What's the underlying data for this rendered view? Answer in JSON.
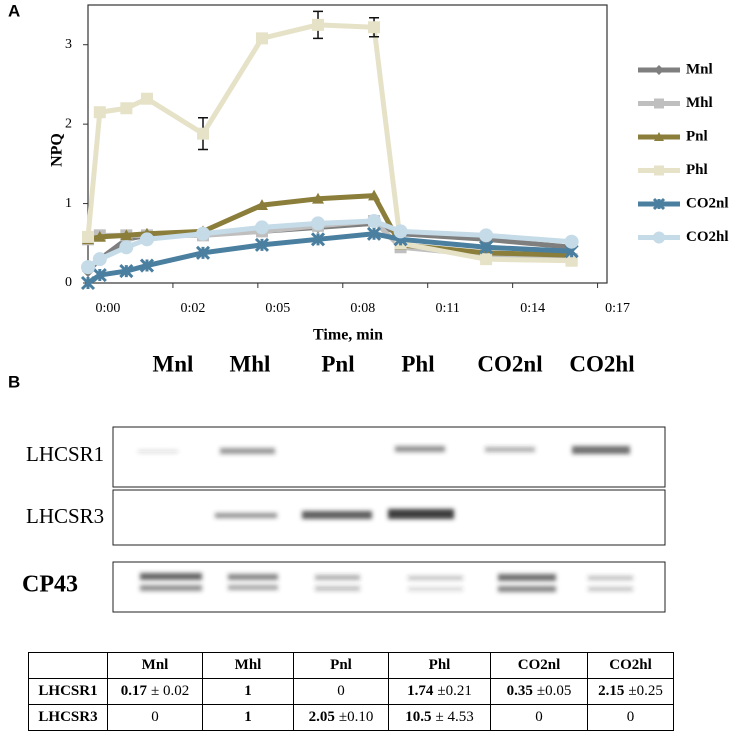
{
  "panel_labels": [
    "A",
    "B"
  ],
  "chart_data": {
    "type": "line",
    "ylabel": "NPQ",
    "xlabel": "Time, min",
    "x": [
      0,
      0.4,
      1.3,
      2.0,
      3.9,
      5.9,
      7.8,
      9.7,
      10.6,
      13.5,
      16.4
    ],
    "xlim": [
      0,
      17.6
    ],
    "xticks": [
      {
        "value": 0,
        "label": "0:00"
      },
      {
        "value": 2.88,
        "label": "0:02"
      },
      {
        "value": 5.76,
        "label": "0:05"
      },
      {
        "value": 8.64,
        "label": "0:08"
      },
      {
        "value": 11.52,
        "label": "0:11"
      },
      {
        "value": 14.4,
        "label": "0:14"
      },
      {
        "value": 17.28,
        "label": "0:17"
      }
    ],
    "ylim": [
      0,
      3.5
    ],
    "yticks": [
      0,
      1,
      2,
      3
    ],
    "legend": "right",
    "series": [
      {
        "name": "Mnl",
        "color": "#7f7f7f",
        "marker": "diamond",
        "values": [
          0.15,
          0.3,
          0.55,
          0.6,
          0.62,
          0.65,
          0.7,
          0.75,
          0.62,
          0.55,
          0.45
        ]
      },
      {
        "name": "Mhl",
        "color": "#bfbfbf",
        "marker": "square",
        "values": [
          0.55,
          0.6,
          0.6,
          0.6,
          0.6,
          0.65,
          0.72,
          0.78,
          0.45,
          0.35,
          0.3
        ]
      },
      {
        "name": "Pnl",
        "color": "#8b7d3a",
        "marker": "triangle",
        "values": [
          0.55,
          0.58,
          0.6,
          0.62,
          0.65,
          0.98,
          1.06,
          1.1,
          0.48,
          0.38,
          0.35
        ]
      },
      {
        "name": "Phl",
        "color": "#e6e2c8",
        "marker": "square",
        "values": [
          0.58,
          2.15,
          2.2,
          2.32,
          1.88,
          3.08,
          3.25,
          3.22,
          0.5,
          0.3,
          0.28
        ],
        "errors": [
          null,
          null,
          null,
          0.05,
          0.2,
          0.05,
          0.17,
          0.12,
          null,
          null,
          null
        ]
      },
      {
        "name": "CO2nl",
        "color": "#4a7fa0",
        "marker": "star",
        "values": [
          0.0,
          0.1,
          0.15,
          0.22,
          0.38,
          0.48,
          0.55,
          0.62,
          0.55,
          0.45,
          0.4
        ]
      },
      {
        "name": "CO2hl",
        "color": "#c5dbe8",
        "marker": "circle",
        "values": [
          0.2,
          0.3,
          0.45,
          0.55,
          0.62,
          0.7,
          0.75,
          0.78,
          0.65,
          0.6,
          0.52
        ]
      }
    ]
  },
  "blot": {
    "lanes": [
      "Mnl",
      "Mhl",
      "Pnl",
      "Phl",
      "CO2nl",
      "CO2hl"
    ],
    "rows": [
      "LHCSR1",
      "LHCSR3",
      "CP43"
    ]
  },
  "table": {
    "header": [
      "Mnl",
      "Mhl",
      "Pnl",
      "Phl",
      "CO2nl",
      "CO2hl"
    ],
    "rows": [
      {
        "label": "LHCSR1",
        "cells": [
          [
            "0.17",
            "± 0.02"
          ],
          [
            "1"
          ],
          "0",
          [
            "1.74",
            "±0.21"
          ],
          [
            "0.35",
            "±0.05"
          ],
          [
            "2.15",
            "±0.25"
          ]
        ]
      },
      {
        "label": "LHCSR3",
        "cells": [
          "0",
          [
            "1"
          ],
          [
            "2.05",
            "±0.10"
          ],
          [
            "10.5",
            "± 4.53"
          ],
          "0",
          "0"
        ]
      }
    ]
  }
}
